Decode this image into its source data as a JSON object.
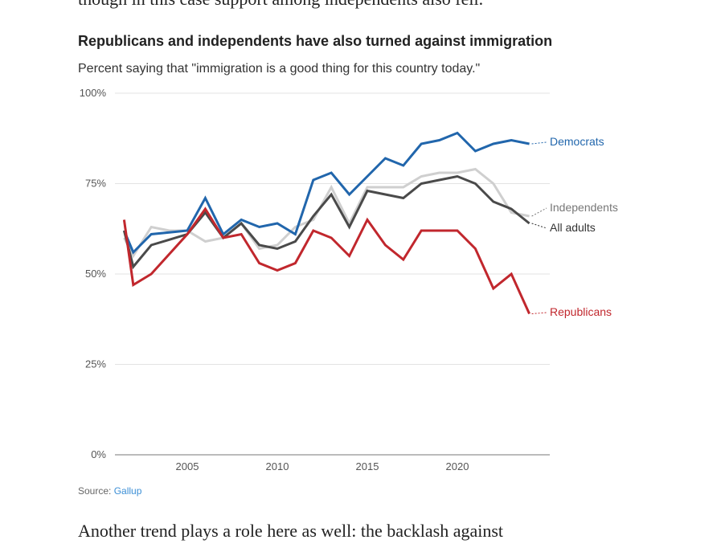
{
  "article": {
    "text_above": "though in this case support among independents also fell.",
    "text_below": "Another trend plays a role here as well: the backlash against"
  },
  "source": {
    "label": "Source:",
    "name": "Gallup"
  },
  "colors": {
    "democrats": "#2166ac",
    "independents": "#cfcfcf",
    "all_adults": "#4a4a4a",
    "republicans": "#c1272d",
    "gridline": "#e3e3e3",
    "source_link": "#3c8fd6"
  },
  "chart_data": {
    "type": "line",
    "title": "Republicans and independents have also turned against immigration",
    "subtitle": "Percent saying that \"immigration is a good thing for this country today.\"",
    "xlabel": "",
    "ylabel": "",
    "xlim": [
      2001,
      2024
    ],
    "ylim": [
      0,
      100
    ],
    "x_ticks": [
      2005,
      2010,
      2015,
      2020
    ],
    "y_ticks": [
      0,
      25,
      50,
      75,
      100
    ],
    "y_tick_labels": [
      "0%",
      "25%",
      "50%",
      "75%",
      "100%"
    ],
    "grid": "horizontal",
    "legend": "direct labels at line ends (right)",
    "x": [
      2001,
      2002,
      2003,
      2004,
      2005,
      2006,
      2007,
      2008,
      2009,
      2010,
      2011,
      2012,
      2013,
      2014,
      2015,
      2016,
      2017,
      2018,
      2019,
      2020,
      2021,
      2022,
      2023,
      2024
    ],
    "series": [
      {
        "name": "Independents",
        "color_key": "independents",
        "values": [
          60,
          55,
          63,
          62,
          62,
          59,
          60,
          64,
          57,
          58,
          63,
          65,
          74,
          64,
          74,
          74,
          74,
          77,
          78,
          78,
          79,
          75,
          67,
          66
        ]
      },
      {
        "name": "Democrats",
        "color_key": "democrats",
        "values": [
          62,
          56,
          61,
          61.5,
          62,
          71,
          61,
          65,
          63,
          64,
          61,
          76,
          78,
          72,
          77,
          82,
          80,
          86,
          87,
          89,
          84,
          86,
          87,
          86
        ]
      },
      {
        "name": "All adults",
        "color_key": "all_adults",
        "values": [
          62,
          52,
          58,
          59.5,
          61,
          67,
          60,
          64,
          58,
          57,
          59,
          66,
          72,
          63,
          73,
          72,
          71,
          75,
          76,
          77,
          75,
          70,
          68,
          64
        ]
      },
      {
        "name": "Republicans",
        "color_key": "republicans",
        "values": [
          65,
          47,
          50,
          55.5,
          61,
          68,
          60,
          61,
          53,
          51,
          53,
          62,
          60,
          55,
          65,
          58,
          54,
          62,
          62,
          62,
          57,
          46,
          50,
          39
        ]
      }
    ]
  }
}
